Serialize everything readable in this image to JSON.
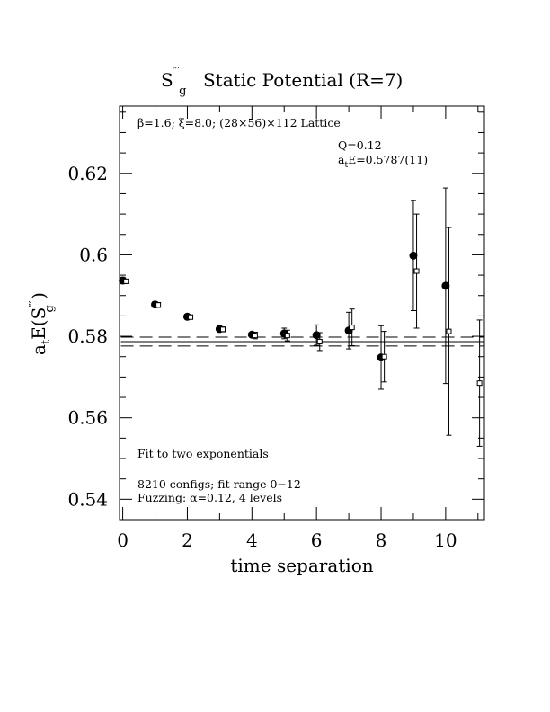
{
  "chart_data": {
    "type": "scatter",
    "title": {
      "op_main": "S",
      "op_sub": "g",
      "op_sup": "″′",
      "rest": "Static Potential (R=7)"
    },
    "xlabel": "time separation",
    "ylabel": {
      "pre": "a",
      "pre_sub": "t",
      "mid": "E(S",
      "sup": "″′",
      "sub": "g",
      "post": " )"
    },
    "xlim": [
      -0.1,
      11.2
    ],
    "ylim": [
      0.535,
      0.6365
    ],
    "xticks": [
      0,
      2,
      4,
      6,
      8,
      10
    ],
    "xtick_labels": [
      "0",
      "2",
      "4",
      "6",
      "8",
      "10"
    ],
    "yticks": [
      0.54,
      0.56,
      0.58,
      0.6,
      0.62
    ],
    "ytick_labels": [
      "0.54",
      "0.56",
      "0.58",
      "0.6",
      "0.62"
    ],
    "annotations": {
      "lattice": "β=1.6; ξ=8.0; (28×56)×112 Lattice",
      "q": "Q=0.12",
      "fit_energy_pre": "a",
      "fit_energy_sub": "t",
      "fit_energy_post": "E=0.5787(11)",
      "fit_type": "Fit to two exponentials",
      "configs": "8210 configs; fit range 0−12",
      "fuzzing": "Fuzzing: α=0.12, 4 levels"
    },
    "fit": {
      "value": 0.5787,
      "band": [
        0.5776,
        0.5798
      ],
      "x_range": [
        0,
        11.2
      ]
    },
    "series": [
      {
        "marker": "filled-circle",
        "x": [
          0,
          1,
          2,
          3,
          4,
          5,
          6,
          7,
          8,
          9,
          10
        ],
        "y": [
          0.5937,
          0.5878,
          0.5848,
          0.5818,
          0.5804,
          0.5807,
          0.5803,
          0.5814,
          0.5748,
          0.5998,
          0.5924
        ],
        "err": [
          0.0008,
          0.0007,
          0.0006,
          0.0006,
          0.0006,
          0.0013,
          0.0025,
          0.0045,
          0.0078,
          0.0135,
          0.024
        ]
      },
      {
        "marker": "open-square",
        "x": [
          0.1,
          1.1,
          2.1,
          3.1,
          4.1,
          5.1,
          6.1,
          7.1,
          8.1,
          9.1,
          10.1,
          11.05
        ],
        "y": [
          0.5935,
          0.5877,
          0.5847,
          0.5817,
          0.5802,
          0.5802,
          0.5787,
          0.5822,
          0.575,
          0.596,
          0.5812,
          0.5685
        ],
        "err": [
          0.0005,
          0.0006,
          0.0005,
          0.0006,
          0.0008,
          0.0013,
          0.0022,
          0.0045,
          0.0062,
          0.014,
          0.0255,
          0.0155
        ]
      }
    ]
  }
}
